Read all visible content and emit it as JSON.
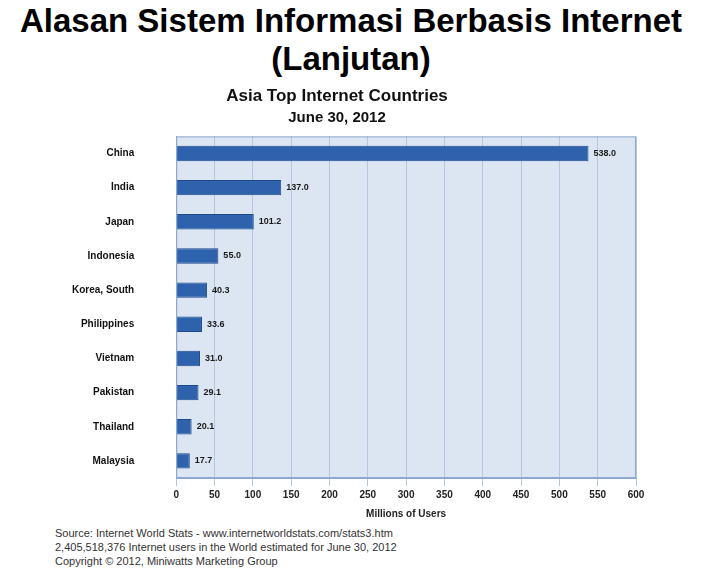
{
  "page": {
    "heading": "Alasan Sistem Informasi Berbasis Internet (Lanjutan)",
    "notes": [
      "Source: Internet World Stats - www.internetworldstats.com/stats3.htm",
      "2,405,518,376 Internet users in the World estimated for June 30, 2012",
      "Copyright © 2012, Miniwatts Marketing Group"
    ]
  },
  "chart_data": {
    "type": "bar",
    "orientation": "horizontal",
    "title": "Asia Top Internet Countries",
    "subtitle": "June 30, 2012",
    "x_label": "Millions of Users",
    "categories": [
      "China",
      "India",
      "Japan",
      "Indonesia",
      "Korea, South",
      "Philippines",
      "Vietnam",
      "Pakistan",
      "Thailand",
      "Malaysia"
    ],
    "values": [
      538.0,
      137.0,
      101.2,
      55.0,
      40.3,
      33.6,
      31.0,
      29.1,
      20.1,
      17.7
    ],
    "value_labels": [
      "538.0",
      "137.0",
      "101.2",
      "55.0",
      "40.3",
      "33.6",
      "31.0",
      "29.1",
      "20.1",
      "17.7"
    ],
    "data_labels": true,
    "color": "#2f62ad",
    "xlim": [
      0,
      600
    ],
    "xticks": [
      0,
      50,
      100,
      150,
      200,
      250,
      300,
      350,
      400,
      450,
      500,
      550,
      600
    ],
    "grid": true
  }
}
